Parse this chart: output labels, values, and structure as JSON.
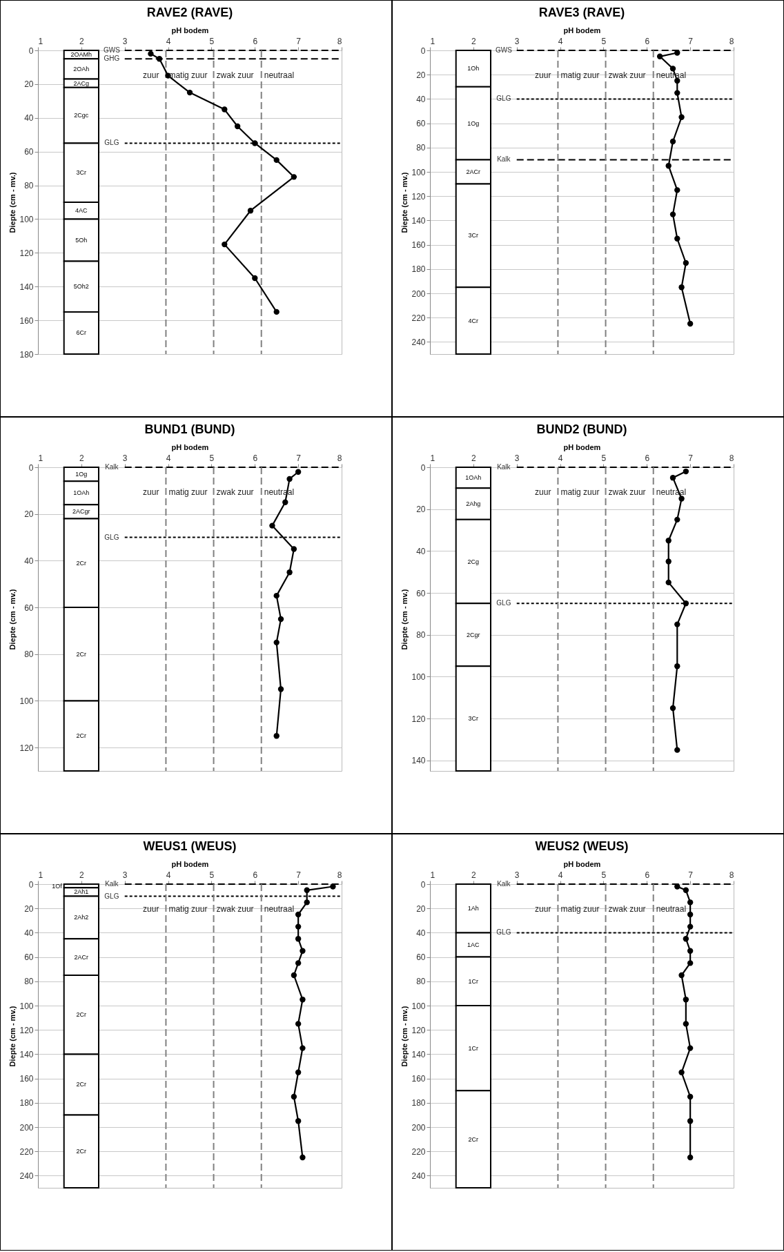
{
  "chart_data": [
    {
      "type": "line",
      "title": "RAVE2 (RAVE)",
      "xlabel": "pH bodem",
      "ylabel": "Diepte (cm - mv.)",
      "color": "#000000",
      "marker": "circle",
      "line_style": "solid",
      "grid": "y",
      "xlim": [
        1,
        8
      ],
      "xticks": [
        1,
        2,
        3,
        4,
        5,
        6,
        7,
        8
      ],
      "ylim": [
        180,
        0
      ],
      "yticks": [
        0,
        20,
        40,
        60,
        80,
        100,
        120,
        140,
        160,
        180
      ],
      "x": [
        3.6,
        3.8,
        4.0,
        4.5,
        5.3,
        5.6,
        6.0,
        6.5,
        6.9,
        5.9,
        5.3,
        6.0,
        6.5
      ],
      "values": [
        2,
        5,
        15,
        25,
        35,
        45,
        55,
        65,
        75,
        95,
        115,
        135,
        155
      ],
      "bands": [
        {
          "axis": "y",
          "from": 0,
          "to": 5,
          "label": "2OAMh"
        },
        {
          "axis": "y",
          "from": 5,
          "to": 17,
          "label": "2OAh"
        },
        {
          "axis": "y",
          "from": 17,
          "to": 22,
          "label": "2ACg"
        },
        {
          "axis": "y",
          "from": 22,
          "to": 55,
          "label": "2Cgc"
        },
        {
          "axis": "y",
          "from": 55,
          "to": 90,
          "label": "3Cr"
        },
        {
          "axis": "y",
          "from": 90,
          "to": 100,
          "label": "4AC"
        },
        {
          "axis": "y",
          "from": 100,
          "to": 125,
          "label": "5Oh"
        },
        {
          "axis": "y",
          "from": 125,
          "to": 155,
          "label": "5Oh2"
        },
        {
          "axis": "y",
          "from": 155,
          "to": 180,
          "label": "6Cr"
        }
      ],
      "ref_lines": [
        {
          "axis": "y",
          "value": 0,
          "label": "GWS",
          "line_style": "dashed",
          "color": "#000000"
        },
        {
          "axis": "y",
          "value": 5,
          "label": "GHG",
          "line_style": "dashed",
          "color": "#000000"
        },
        {
          "axis": "y",
          "value": 55,
          "label": "GLG",
          "line_style": "dotted",
          "color": "#000000"
        },
        {
          "axis": "x",
          "value": 3.95,
          "line_style": "dashed",
          "color": "#808080"
        },
        {
          "axis": "x",
          "value": 5.05,
          "line_style": "dashed",
          "color": "#808080"
        },
        {
          "axis": "x",
          "value": 6.15,
          "line_style": "dashed",
          "color": "#808080"
        }
      ],
      "annotations": [
        "zuur",
        "matig zuur",
        "zwak zuur",
        "neutraal"
      ]
    },
    {
      "type": "line",
      "title": "RAVE3 (RAVE)",
      "xlabel": "pH bodem",
      "ylabel": "Diepte (cm - mv.)",
      "color": "#000000",
      "marker": "circle",
      "line_style": "solid",
      "grid": "y",
      "xlim": [
        1,
        8
      ],
      "xticks": [
        1,
        2,
        3,
        4,
        5,
        6,
        7,
        8
      ],
      "ylim": [
        250,
        0
      ],
      "yticks": [
        0,
        20,
        40,
        60,
        80,
        100,
        120,
        140,
        160,
        180,
        200,
        220,
        240
      ],
      "x": [
        6.7,
        6.3,
        6.6,
        6.7,
        6.7,
        6.8,
        6.6,
        6.5,
        6.7,
        6.6,
        6.7,
        6.9,
        6.8,
        7.0
      ],
      "values": [
        2,
        5,
        15,
        25,
        35,
        55,
        75,
        95,
        115,
        135,
        155,
        175,
        195,
        225
      ],
      "bands": [
        {
          "axis": "y",
          "from": 0,
          "to": 30,
          "label": "1Oh"
        },
        {
          "axis": "y",
          "from": 30,
          "to": 90,
          "label": "1Og"
        },
        {
          "axis": "y",
          "from": 90,
          "to": 110,
          "label": "2ACr"
        },
        {
          "axis": "y",
          "from": 110,
          "to": 195,
          "label": "3Cr"
        },
        {
          "axis": "y",
          "from": 195,
          "to": 250,
          "label": "4Cr"
        }
      ],
      "ref_lines": [
        {
          "axis": "y",
          "value": 0,
          "label": "GWS",
          "line_style": "dashed",
          "color": "#000000"
        },
        {
          "axis": "y",
          "value": 40,
          "label": "GLG",
          "line_style": "dotted",
          "color": "#000000"
        },
        {
          "axis": "y",
          "value": 90,
          "label": "Kalk",
          "line_style": "dashed",
          "color": "#000000"
        },
        {
          "axis": "x",
          "value": 3.95,
          "line_style": "dashed",
          "color": "#808080"
        },
        {
          "axis": "x",
          "value": 5.05,
          "line_style": "dashed",
          "color": "#808080"
        },
        {
          "axis": "x",
          "value": 6.15,
          "line_style": "dashed",
          "color": "#808080"
        }
      ],
      "annotations": [
        "zuur",
        "matig zuur",
        "zwak zuur",
        "neutraal"
      ]
    },
    {
      "type": "line",
      "title": "BUND1 (BUND)",
      "xlabel": "pH bodem",
      "ylabel": "Diepte (cm - mv.)",
      "color": "#000000",
      "marker": "circle",
      "line_style": "solid",
      "grid": "y",
      "xlim": [
        1,
        8
      ],
      "xticks": [
        1,
        2,
        3,
        4,
        5,
        6,
        7,
        8
      ],
      "ylim": [
        130,
        0
      ],
      "yticks": [
        0,
        20,
        40,
        60,
        80,
        100,
        120
      ],
      "x": [
        7.0,
        6.8,
        6.7,
        6.4,
        6.9,
        6.8,
        6.5,
        6.6,
        6.5,
        6.6,
        6.5
      ],
      "values": [
        2,
        5,
        15,
        25,
        35,
        45,
        55,
        65,
        75,
        95,
        115
      ],
      "bands": [
        {
          "axis": "y",
          "from": 0,
          "to": 6,
          "label": "1Og"
        },
        {
          "axis": "y",
          "from": 6,
          "to": 16,
          "label": "1OAh"
        },
        {
          "axis": "y",
          "from": 16,
          "to": 22,
          "label": "2ACgr"
        },
        {
          "axis": "y",
          "from": 22,
          "to": 60,
          "label": "2Cr"
        },
        {
          "axis": "y",
          "from": 60,
          "to": 100,
          "label": "2Cr"
        },
        {
          "axis": "y",
          "from": 100,
          "to": 130,
          "label": "2Cr"
        }
      ],
      "ref_lines": [
        {
          "axis": "y",
          "value": 0,
          "label": "Kalk",
          "line_style": "dashed",
          "color": "#000000"
        },
        {
          "axis": "y",
          "value": 30,
          "label": "GLG",
          "line_style": "dotted",
          "color": "#000000"
        },
        {
          "axis": "x",
          "value": 3.95,
          "line_style": "dashed",
          "color": "#808080"
        },
        {
          "axis": "x",
          "value": 5.05,
          "line_style": "dashed",
          "color": "#808080"
        },
        {
          "axis": "x",
          "value": 6.15,
          "line_style": "dashed",
          "color": "#808080"
        }
      ],
      "annotations": [
        "zuur",
        "matig zuur",
        "zwak zuur",
        "neutraal"
      ]
    },
    {
      "type": "line",
      "title": "BUND2 (BUND)",
      "xlabel": "pH bodem",
      "ylabel": "Diepte (cm - mv.)",
      "color": "#000000",
      "marker": "circle",
      "line_style": "solid",
      "grid": "y",
      "xlim": [
        1,
        8
      ],
      "xticks": [
        1,
        2,
        3,
        4,
        5,
        6,
        7,
        8
      ],
      "ylim": [
        145,
        0
      ],
      "yticks": [
        0,
        20,
        40,
        60,
        80,
        100,
        120,
        140
      ],
      "x": [
        6.9,
        6.6,
        6.8,
        6.7,
        6.5,
        6.5,
        6.5,
        6.9,
        6.7,
        6.7,
        6.6,
        6.7
      ],
      "values": [
        2,
        5,
        15,
        25,
        35,
        45,
        55,
        65,
        75,
        95,
        115,
        135
      ],
      "bands": [
        {
          "axis": "y",
          "from": 0,
          "to": 10,
          "label": "1OAh"
        },
        {
          "axis": "y",
          "from": 10,
          "to": 25,
          "label": "2Ahg"
        },
        {
          "axis": "y",
          "from": 25,
          "to": 65,
          "label": "2Cg"
        },
        {
          "axis": "y",
          "from": 65,
          "to": 95,
          "label": "2Cgr"
        },
        {
          "axis": "y",
          "from": 95,
          "to": 145,
          "label": "3Cr"
        }
      ],
      "ref_lines": [
        {
          "axis": "y",
          "value": 0,
          "label": "Kalk",
          "line_style": "dashed",
          "color": "#000000"
        },
        {
          "axis": "y",
          "value": 65,
          "label": "GLG",
          "line_style": "dotted",
          "color": "#000000"
        },
        {
          "axis": "x",
          "value": 3.95,
          "line_style": "dashed",
          "color": "#808080"
        },
        {
          "axis": "x",
          "value": 5.05,
          "line_style": "dashed",
          "color": "#808080"
        },
        {
          "axis": "x",
          "value": 6.15,
          "line_style": "dashed",
          "color": "#808080"
        }
      ],
      "annotations": [
        "zuur",
        "matig zuur",
        "zwak zuur",
        "neutraal"
      ]
    },
    {
      "type": "line",
      "title": "WEUS1 (WEUS)",
      "xlabel": "pH bodem",
      "ylabel": "Diepte (cm - mv.)",
      "color": "#000000",
      "marker": "circle",
      "line_style": "solid",
      "grid": "y",
      "xlim": [
        1,
        8
      ],
      "xticks": [
        1,
        2,
        3,
        4,
        5,
        6,
        7,
        8
      ],
      "ylim": [
        250,
        0
      ],
      "yticks": [
        0,
        20,
        40,
        60,
        80,
        100,
        120,
        140,
        160,
        180,
        200,
        220,
        240
      ],
      "x": [
        7.8,
        7.2,
        7.2,
        7.0,
        7.0,
        7.0,
        7.1,
        7.0,
        6.9,
        7.1,
        7.0,
        7.1,
        7.0,
        6.9,
        7.0,
        7.1
      ],
      "values": [
        2,
        5,
        15,
        25,
        35,
        45,
        55,
        65,
        75,
        95,
        115,
        135,
        155,
        175,
        195,
        225
      ],
      "bands": [
        {
          "axis": "y",
          "from": 0,
          "to": 3,
          "label": "1Of"
        },
        {
          "axis": "y",
          "from": 3,
          "to": 10,
          "label": "2Ah1"
        },
        {
          "axis": "y",
          "from": 10,
          "to": 45,
          "label": "2Ah2"
        },
        {
          "axis": "y",
          "from": 45,
          "to": 75,
          "label": "2ACr"
        },
        {
          "axis": "y",
          "from": 75,
          "to": 140,
          "label": "2Cr"
        },
        {
          "axis": "y",
          "from": 140,
          "to": 190,
          "label": "2Cr"
        },
        {
          "axis": "y",
          "from": 190,
          "to": 250,
          "label": "2Cr"
        }
      ],
      "ref_lines": [
        {
          "axis": "y",
          "value": 0,
          "label": "Kalk",
          "line_style": "dashed",
          "color": "#000000"
        },
        {
          "axis": "y",
          "value": 10,
          "label": "GLG",
          "line_style": "dotted",
          "color": "#000000"
        },
        {
          "axis": "x",
          "value": 3.95,
          "line_style": "dashed",
          "color": "#808080"
        },
        {
          "axis": "x",
          "value": 5.05,
          "line_style": "dashed",
          "color": "#808080"
        },
        {
          "axis": "x",
          "value": 6.15,
          "line_style": "dashed",
          "color": "#808080"
        }
      ],
      "annotations": [
        "zuur",
        "matig zuur",
        "zwak zuur",
        "neutraal"
      ]
    },
    {
      "type": "line",
      "title": "WEUS2 (WEUS)",
      "xlabel": "pH bodem",
      "ylabel": "Diepte (cm - mv.)",
      "color": "#000000",
      "marker": "circle",
      "line_style": "solid",
      "grid": "y",
      "xlim": [
        1,
        8
      ],
      "xticks": [
        1,
        2,
        3,
        4,
        5,
        6,
        7,
        8
      ],
      "ylim": [
        250,
        0
      ],
      "yticks": [
        0,
        20,
        40,
        60,
        80,
        100,
        120,
        140,
        160,
        180,
        200,
        220,
        240
      ],
      "x": [
        6.7,
        6.9,
        7.0,
        7.0,
        7.0,
        6.9,
        7.0,
        7.0,
        6.8,
        6.9,
        6.9,
        7.0,
        6.8,
        7.0,
        7.0,
        7.0
      ],
      "values": [
        2,
        5,
        15,
        25,
        35,
        45,
        55,
        65,
        75,
        95,
        115,
        135,
        155,
        175,
        195,
        225
      ],
      "bands": [
        {
          "axis": "y",
          "from": 0,
          "to": 40,
          "label": "1Ah"
        },
        {
          "axis": "y",
          "from": 40,
          "to": 60,
          "label": "1AC"
        },
        {
          "axis": "y",
          "from": 60,
          "to": 100,
          "label": "1Cr"
        },
        {
          "axis": "y",
          "from": 100,
          "to": 170,
          "label": "1Cr"
        },
        {
          "axis": "y",
          "from": 170,
          "to": 250,
          "label": "2Cr"
        }
      ],
      "ref_lines": [
        {
          "axis": "y",
          "value": 0,
          "label": "Kalk",
          "line_style": "dashed",
          "color": "#000000"
        },
        {
          "axis": "y",
          "value": 40,
          "label": "GLG",
          "line_style": "dotted",
          "color": "#000000"
        },
        {
          "axis": "x",
          "value": 3.95,
          "line_style": "dashed",
          "color": "#808080"
        },
        {
          "axis": "x",
          "value": 5.05,
          "line_style": "dashed",
          "color": "#808080"
        },
        {
          "axis": "x",
          "value": 6.15,
          "line_style": "dashed",
          "color": "#808080"
        }
      ],
      "annotations": [
        "zuur",
        "matig zuur",
        "zwak zuur",
        "neutraal"
      ]
    }
  ]
}
